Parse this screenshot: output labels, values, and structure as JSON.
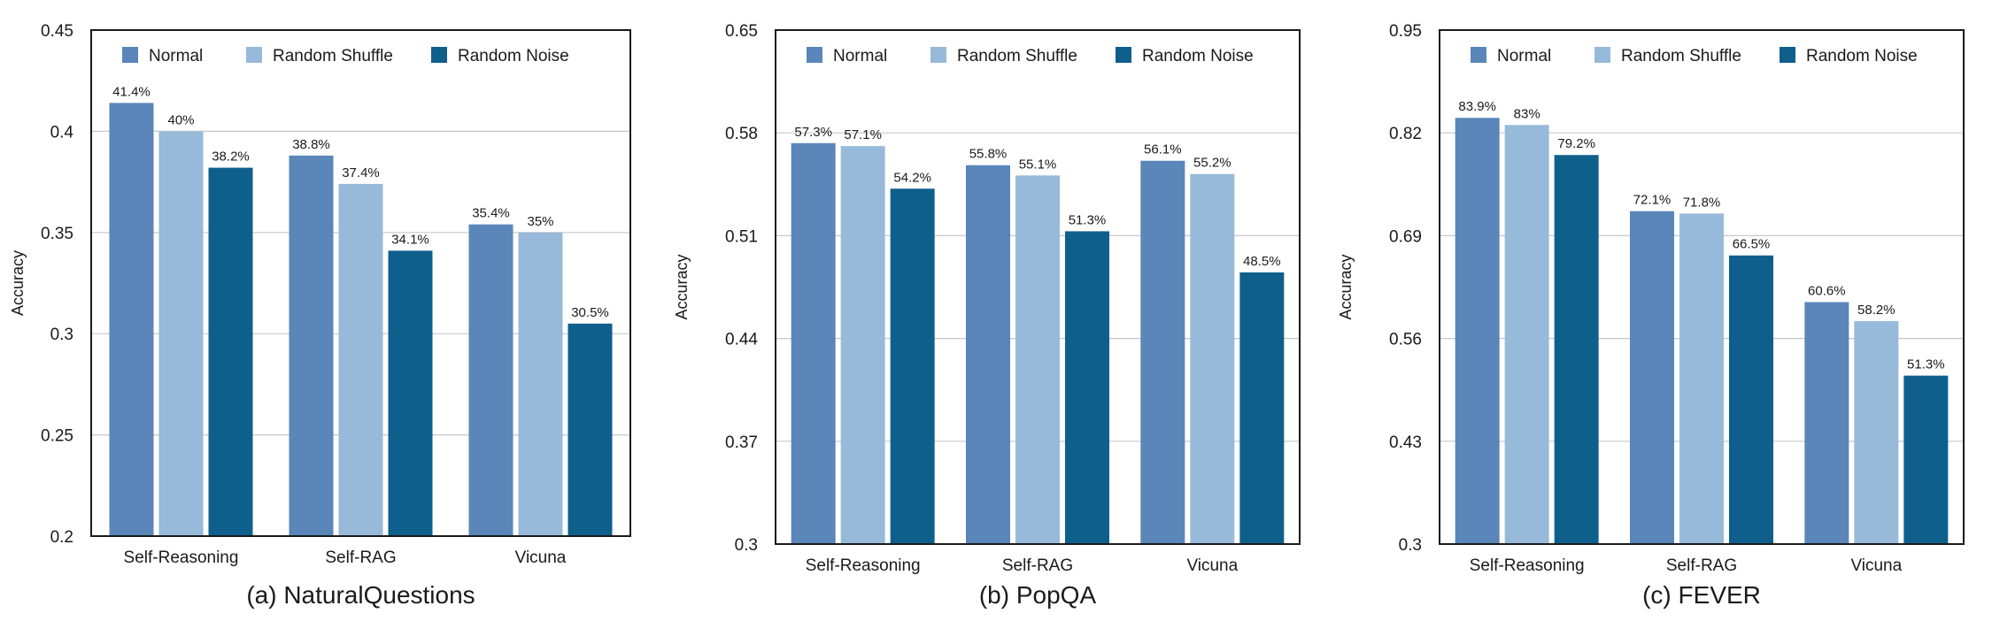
{
  "chart_data": [
    {
      "type": "bar",
      "title": "(a) NaturalQuestions",
      "ylabel": "Accuracy",
      "categories": [
        "Self-Reasoning",
        "Self-RAG",
        "Vicuna"
      ],
      "ylim": [
        0.2,
        0.45
      ],
      "yticks": [
        0.2,
        0.25,
        0.3,
        0.35,
        0.4,
        0.45
      ],
      "ytick_labels": [
        "0.2",
        "0.25",
        "0.3",
        "0.35",
        "0.4",
        "0.45"
      ],
      "grid": true,
      "legend_position": "top",
      "series": [
        {
          "name": "Normal",
          "color": "#5a86b9",
          "values": [
            0.414,
            0.388,
            0.354
          ],
          "labels": [
            "41.4%",
            "38.8%",
            "35.4%"
          ]
        },
        {
          "name": "Random Shuffle",
          "color": "#97bada",
          "values": [
            0.4,
            0.374,
            0.35
          ],
          "labels": [
            "40%",
            "37.4%",
            "35%"
          ]
        },
        {
          "name": "Random Noise",
          "color": "#0f5f8c",
          "values": [
            0.382,
            0.341,
            0.305
          ],
          "labels": [
            "38.2%",
            "34.1%",
            "30.5%"
          ]
        }
      ]
    },
    {
      "type": "bar",
      "title": "(b) PopQA",
      "ylabel": "Accuracy",
      "categories": [
        "Self-Reasoning",
        "Self-RAG",
        "Vicuna"
      ],
      "ylim": [
        0.3,
        0.65
      ],
      "yticks": [
        0.3,
        0.37,
        0.44,
        0.51,
        0.58,
        0.65
      ],
      "ytick_labels": [
        "0.3",
        "0.37",
        "0.44",
        "0.51",
        "0.58",
        "0.65"
      ],
      "grid": true,
      "legend_position": "top",
      "series": [
        {
          "name": "Normal",
          "color": "#5a86b9",
          "values": [
            0.573,
            0.558,
            0.561
          ],
          "labels": [
            "57.3%",
            "55.8%",
            "56.1%"
          ]
        },
        {
          "name": "Random Shuffle",
          "color": "#97bada",
          "values": [
            0.571,
            0.551,
            0.552
          ],
          "labels": [
            "57.1%",
            "55.1%",
            "55.2%"
          ]
        },
        {
          "name": "Random Noise",
          "color": "#0f5f8c",
          "values": [
            0.542,
            0.513,
            0.485
          ],
          "labels": [
            "54.2%",
            "51.3%",
            "48.5%"
          ]
        }
      ]
    },
    {
      "type": "bar",
      "title": "(c) FEVER",
      "ylabel": "Accuracy",
      "categories": [
        "Self-Reasoning",
        "Self-RAG",
        "Vicuna"
      ],
      "ylim": [
        0.3,
        0.95
      ],
      "yticks": [
        0.3,
        0.43,
        0.56,
        0.69,
        0.82,
        0.95
      ],
      "ytick_labels": [
        "0.3",
        "0.43",
        "0.56",
        "0.69",
        "0.82",
        "0.95"
      ],
      "grid": true,
      "legend_position": "top",
      "series": [
        {
          "name": "Normal",
          "color": "#5a86b9",
          "values": [
            0.839,
            0.721,
            0.606
          ],
          "labels": [
            "83.9%",
            "72.1%",
            "60.6%"
          ]
        },
        {
          "name": "Random Shuffle",
          "color": "#97bada",
          "values": [
            0.83,
            0.718,
            0.582
          ],
          "labels": [
            "83%",
            "71.8%",
            "58.2%"
          ]
        },
        {
          "name": "Random Noise",
          "color": "#0f5f8c",
          "values": [
            0.792,
            0.665,
            0.513
          ],
          "labels": [
            "79.2%",
            "66.5%",
            "51.3%"
          ]
        }
      ]
    }
  ]
}
